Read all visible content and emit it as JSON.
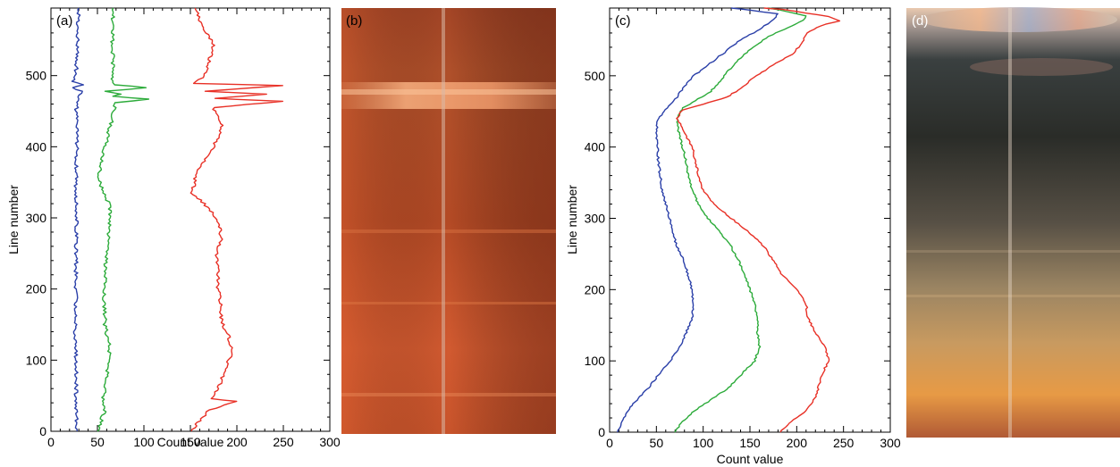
{
  "chart_data": [
    {
      "panel": "(a)",
      "type": "line",
      "orientation": "vertical-profile",
      "xlabel": "Count value",
      "ylabel": "Line number",
      "xlim": [
        0,
        300
      ],
      "ylim": [
        0,
        595
      ],
      "xticks": [
        "0",
        "50",
        "100",
        "150",
        "200",
        "250",
        "300"
      ],
      "yticks": [
        "0",
        "100",
        "200",
        "300",
        "400",
        "500"
      ],
      "series": [
        {
          "color": "#2a3fa8",
          "points": [
            [
              28,
              0
            ],
            [
              27,
              50
            ],
            [
              27,
              100
            ],
            [
              26,
              150
            ],
            [
              27,
              200
            ],
            [
              27,
              250
            ],
            [
              28,
              300
            ],
            [
              27,
              350
            ],
            [
              28,
              400
            ],
            [
              27,
              450
            ],
            [
              29,
              470
            ],
            [
              33,
              478
            ],
            [
              24,
              483
            ],
            [
              33,
              487
            ],
            [
              24,
              492
            ],
            [
              27,
              500
            ],
            [
              28,
              530
            ],
            [
              29,
              560
            ],
            [
              30,
              595
            ]
          ]
        },
        {
          "color": "#2cab3a",
          "points": [
            [
              52,
              0
            ],
            [
              54,
              15
            ],
            [
              58,
              30
            ],
            [
              56,
              45
            ],
            [
              59,
              60
            ],
            [
              62,
              100
            ],
            [
              63,
              120
            ],
            [
              58,
              150
            ],
            [
              57,
              200
            ],
            [
              60,
              250
            ],
            [
              64,
              300
            ],
            [
              62,
              320
            ],
            [
              55,
              340
            ],
            [
              52,
              360
            ],
            [
              55,
              380
            ],
            [
              60,
              410
            ],
            [
              66,
              440
            ],
            [
              68,
              455
            ],
            [
              70,
              462
            ],
            [
              105,
              467
            ],
            [
              66,
              471
            ],
            [
              75,
              474
            ],
            [
              60,
              478
            ],
            [
              104,
              483
            ],
            [
              68,
              487
            ],
            [
              66,
              493
            ],
            [
              67,
              520
            ],
            [
              66,
              560
            ],
            [
              67,
              595
            ]
          ]
        },
        {
          "color": "#e83026",
          "points": [
            [
              151,
              0
            ],
            [
              160,
              15
            ],
            [
              170,
              30
            ],
            [
              200,
              42
            ],
            [
              172,
              46
            ],
            [
              180,
              60
            ],
            [
              185,
              80
            ],
            [
              195,
              110
            ],
            [
              192,
              130
            ],
            [
              185,
              150
            ],
            [
              182,
              170
            ],
            [
              185,
              178
            ],
            [
              182,
              182
            ],
            [
              180,
              200
            ],
            [
              178,
              250
            ],
            [
              183,
              270
            ],
            [
              182,
              290
            ],
            [
              178,
              300
            ],
            [
              165,
              320
            ],
            [
              152,
              335
            ],
            [
              156,
              360
            ],
            [
              165,
              380
            ],
            [
              175,
              400
            ],
            [
              185,
              430
            ],
            [
              175,
              455
            ],
            [
              250,
              464
            ],
            [
              175,
              468
            ],
            [
              232,
              474
            ],
            [
              165,
              478
            ],
            [
              250,
              486
            ],
            [
              155,
              489
            ],
            [
              165,
              500
            ],
            [
              170,
              520
            ],
            [
              175,
              545
            ],
            [
              163,
              570
            ],
            [
              155,
              595
            ]
          ]
        }
      ]
    },
    {
      "panel": "(c)",
      "type": "line",
      "orientation": "vertical-profile",
      "xlabel": "Count value",
      "ylabel": "Line number",
      "xlim": [
        0,
        300
      ],
      "ylim": [
        0,
        595
      ],
      "xticks": [
        "0",
        "50",
        "100",
        "150",
        "200",
        "250",
        "300"
      ],
      "yticks": [
        "0",
        "100",
        "200",
        "300",
        "400",
        "500"
      ],
      "series": [
        {
          "color": "#2a3fa8",
          "points": [
            [
              8,
              0
            ],
            [
              15,
              20
            ],
            [
              25,
              40
            ],
            [
              40,
              60
            ],
            [
              52,
              80
            ],
            [
              65,
              100
            ],
            [
              75,
              120
            ],
            [
              82,
              140
            ],
            [
              88,
              160
            ],
            [
              90,
              180
            ],
            [
              88,
              200
            ],
            [
              84,
              220
            ],
            [
              80,
              240
            ],
            [
              72,
              260
            ],
            [
              68,
              280
            ],
            [
              64,
              300
            ],
            [
              60,
              320
            ],
            [
              56,
              340
            ],
            [
              54,
              360
            ],
            [
              52,
              380
            ],
            [
              51,
              400
            ],
            [
              50,
              420
            ],
            [
              52,
              440
            ],
            [
              62,
              455
            ],
            [
              72,
              470
            ],
            [
              80,
              485
            ],
            [
              90,
              500
            ],
            [
              110,
              520
            ],
            [
              125,
              535
            ],
            [
              140,
              550
            ],
            [
              160,
              565
            ],
            [
              175,
              578
            ],
            [
              180,
              587
            ],
            [
              150,
              592
            ],
            [
              130,
              595
            ]
          ]
        },
        {
          "color": "#2cab3a",
          "points": [
            [
              70,
              0
            ],
            [
              78,
              15
            ],
            [
              90,
              30
            ],
            [
              108,
              45
            ],
            [
              125,
              60
            ],
            [
              140,
              80
            ],
            [
              155,
              100
            ],
            [
              160,
              120
            ],
            [
              158,
              140
            ],
            [
              158,
              160
            ],
            [
              155,
              180
            ],
            [
              150,
              200
            ],
            [
              145,
              220
            ],
            [
              138,
              240
            ],
            [
              130,
              260
            ],
            [
              118,
              280
            ],
            [
              105,
              300
            ],
            [
              95,
              320
            ],
            [
              88,
              340
            ],
            [
              84,
              360
            ],
            [
              82,
              380
            ],
            [
              78,
              400
            ],
            [
              74,
              420
            ],
            [
              72,
              440
            ],
            [
              78,
              455
            ],
            [
              92,
              465
            ],
            [
              108,
              478
            ],
            [
              120,
              495
            ],
            [
              132,
              515
            ],
            [
              148,
              535
            ],
            [
              170,
              555
            ],
            [
              195,
              570
            ],
            [
              208,
              578
            ],
            [
              210,
              584
            ],
            [
              190,
              590
            ],
            [
              170,
              595
            ]
          ]
        },
        {
          "color": "#e83026",
          "points": [
            [
              182,
              0
            ],
            [
              195,
              15
            ],
            [
              210,
              30
            ],
            [
              220,
              50
            ],
            [
              225,
              70
            ],
            [
              230,
              90
            ],
            [
              235,
              100
            ],
            [
              230,
              120
            ],
            [
              220,
              140
            ],
            [
              212,
              160
            ],
            [
              210,
              180
            ],
            [
              200,
              200
            ],
            [
              185,
              220
            ],
            [
              175,
              240
            ],
            [
              165,
              260
            ],
            [
              150,
              280
            ],
            [
              130,
              300
            ],
            [
              112,
              320
            ],
            [
              100,
              340
            ],
            [
              95,
              360
            ],
            [
              92,
              380
            ],
            [
              88,
              400
            ],
            [
              80,
              420
            ],
            [
              72,
              440
            ],
            [
              78,
              452
            ],
            [
              100,
              460
            ],
            [
              125,
              470
            ],
            [
              138,
              480
            ],
            [
              152,
              495
            ],
            [
              175,
              515
            ],
            [
              195,
              530
            ],
            [
              205,
              545
            ],
            [
              212,
              560
            ],
            [
              225,
              570
            ],
            [
              245,
              577
            ],
            [
              235,
              583
            ],
            [
              210,
              588
            ],
            [
              185,
              593
            ],
            [
              165,
              595
            ]
          ]
        }
      ]
    }
  ],
  "photos": [
    {
      "panel": "(b)"
    },
    {
      "panel": "(d)"
    }
  ],
  "colors": {
    "blue": "#2a3fa8",
    "green": "#2cab3a",
    "red": "#e83026"
  }
}
